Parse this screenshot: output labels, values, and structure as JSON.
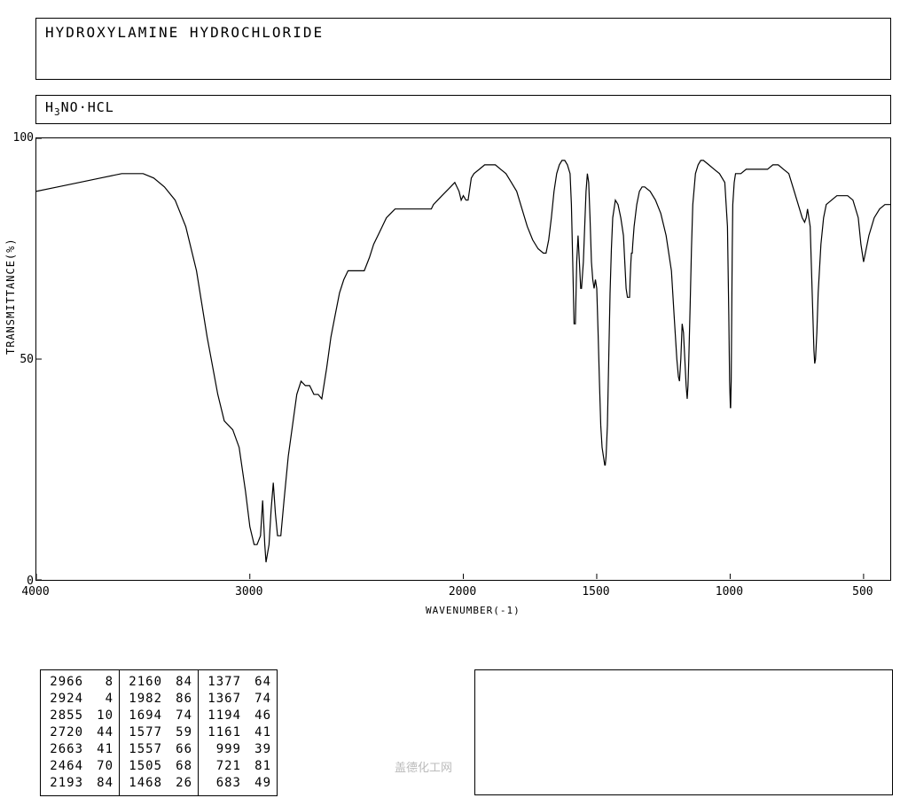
{
  "header": {
    "title": "HYDROXYLAMINE HYDROCHLORIDE",
    "formula_pre": "H",
    "formula_sub": "3",
    "formula_post": "NO·HCL"
  },
  "chart": {
    "type": "line",
    "ylabel": "TRANSMITTANCE(%)",
    "xlabel": "WAVENUMBER(-1)",
    "xlim": [
      4000,
      400
    ],
    "ylim": [
      0,
      100
    ],
    "yticks": [
      0,
      50,
      100
    ],
    "xticks": [
      4000,
      3000,
      2000,
      1500,
      1000,
      500
    ],
    "line_color": "#000000",
    "line_width": 1.2,
    "background_color": "#ffffff",
    "data": [
      [
        4000,
        88
      ],
      [
        3900,
        89
      ],
      [
        3800,
        90
      ],
      [
        3700,
        91
      ],
      [
        3600,
        92
      ],
      [
        3500,
        92
      ],
      [
        3450,
        91
      ],
      [
        3400,
        89
      ],
      [
        3350,
        86
      ],
      [
        3300,
        80
      ],
      [
        3250,
        70
      ],
      [
        3200,
        55
      ],
      [
        3150,
        42
      ],
      [
        3120,
        36
      ],
      [
        3100,
        35
      ],
      [
        3080,
        34
      ],
      [
        3050,
        30
      ],
      [
        3020,
        20
      ],
      [
        3000,
        12
      ],
      [
        2980,
        8
      ],
      [
        2966,
        8
      ],
      [
        2950,
        10
      ],
      [
        2940,
        18
      ],
      [
        2930,
        8
      ],
      [
        2924,
        4
      ],
      [
        2910,
        8
      ],
      [
        2900,
        16
      ],
      [
        2890,
        22
      ],
      [
        2880,
        15
      ],
      [
        2870,
        10
      ],
      [
        2855,
        10
      ],
      [
        2840,
        18
      ],
      [
        2820,
        28
      ],
      [
        2800,
        35
      ],
      [
        2780,
        42
      ],
      [
        2760,
        45
      ],
      [
        2740,
        44
      ],
      [
        2720,
        44
      ],
      [
        2700,
        42
      ],
      [
        2680,
        42
      ],
      [
        2663,
        41
      ],
      [
        2640,
        48
      ],
      [
        2620,
        55
      ],
      [
        2600,
        60
      ],
      [
        2580,
        65
      ],
      [
        2560,
        68
      ],
      [
        2540,
        70
      ],
      [
        2520,
        70
      ],
      [
        2500,
        70
      ],
      [
        2480,
        70
      ],
      [
        2464,
        70
      ],
      [
        2440,
        73
      ],
      [
        2420,
        76
      ],
      [
        2400,
        78
      ],
      [
        2380,
        80
      ],
      [
        2360,
        82
      ],
      [
        2340,
        83
      ],
      [
        2320,
        84
      ],
      [
        2300,
        84
      ],
      [
        2280,
        84
      ],
      [
        2260,
        84
      ],
      [
        2240,
        84
      ],
      [
        2220,
        84
      ],
      [
        2200,
        84
      ],
      [
        2193,
        84
      ],
      [
        2180,
        84
      ],
      [
        2170,
        84
      ],
      [
        2160,
        84
      ],
      [
        2150,
        84
      ],
      [
        2140,
        85
      ],
      [
        2120,
        86
      ],
      [
        2100,
        87
      ],
      [
        2080,
        88
      ],
      [
        2060,
        89
      ],
      [
        2040,
        90
      ],
      [
        2020,
        88
      ],
      [
        2010,
        86
      ],
      [
        2000,
        87
      ],
      [
        1990,
        86
      ],
      [
        1982,
        86
      ],
      [
        1970,
        91
      ],
      [
        1960,
        92
      ],
      [
        1940,
        93
      ],
      [
        1920,
        94
      ],
      [
        1900,
        94
      ],
      [
        1880,
        94
      ],
      [
        1860,
        93
      ],
      [
        1840,
        92
      ],
      [
        1820,
        90
      ],
      [
        1800,
        88
      ],
      [
        1780,
        84
      ],
      [
        1760,
        80
      ],
      [
        1740,
        77
      ],
      [
        1720,
        75
      ],
      [
        1700,
        74
      ],
      [
        1694,
        74
      ],
      [
        1690,
        74
      ],
      [
        1680,
        77
      ],
      [
        1670,
        82
      ],
      [
        1660,
        88
      ],
      [
        1650,
        92
      ],
      [
        1640,
        94
      ],
      [
        1630,
        95
      ],
      [
        1620,
        95
      ],
      [
        1610,
        94
      ],
      [
        1600,
        92
      ],
      [
        1595,
        85
      ],
      [
        1590,
        72
      ],
      [
        1585,
        58
      ],
      [
        1580,
        58
      ],
      [
        1575,
        72
      ],
      [
        1570,
        78
      ],
      [
        1565,
        72
      ],
      [
        1560,
        66
      ],
      [
        1557,
        66
      ],
      [
        1550,
        72
      ],
      [
        1545,
        80
      ],
      [
        1540,
        88
      ],
      [
        1535,
        92
      ],
      [
        1530,
        90
      ],
      [
        1525,
        82
      ],
      [
        1520,
        72
      ],
      [
        1515,
        68
      ],
      [
        1510,
        66
      ],
      [
        1505,
        68
      ],
      [
        1500,
        66
      ],
      [
        1495,
        56
      ],
      [
        1490,
        45
      ],
      [
        1485,
        35
      ],
      [
        1480,
        30
      ],
      [
        1475,
        28
      ],
      [
        1470,
        26
      ],
      [
        1468,
        26
      ],
      [
        1465,
        28
      ],
      [
        1460,
        35
      ],
      [
        1455,
        50
      ],
      [
        1450,
        65
      ],
      [
        1445,
        75
      ],
      [
        1440,
        82
      ],
      [
        1430,
        86
      ],
      [
        1420,
        85
      ],
      [
        1410,
        82
      ],
      [
        1400,
        78
      ],
      [
        1395,
        72
      ],
      [
        1390,
        66
      ],
      [
        1385,
        64
      ],
      [
        1380,
        64
      ],
      [
        1377,
        64
      ],
      [
        1375,
        68
      ],
      [
        1372,
        72
      ],
      [
        1370,
        74
      ],
      [
        1367,
        74
      ],
      [
        1365,
        76
      ],
      [
        1360,
        80
      ],
      [
        1350,
        85
      ],
      [
        1340,
        88
      ],
      [
        1330,
        89
      ],
      [
        1320,
        89
      ],
      [
        1300,
        88
      ],
      [
        1280,
        86
      ],
      [
        1260,
        83
      ],
      [
        1240,
        78
      ],
      [
        1220,
        70
      ],
      [
        1210,
        60
      ],
      [
        1200,
        50
      ],
      [
        1194,
        46
      ],
      [
        1190,
        45
      ],
      [
        1185,
        50
      ],
      [
        1180,
        58
      ],
      [
        1175,
        56
      ],
      [
        1170,
        50
      ],
      [
        1165,
        44
      ],
      [
        1161,
        41
      ],
      [
        1158,
        44
      ],
      [
        1155,
        50
      ],
      [
        1150,
        62
      ],
      [
        1145,
        75
      ],
      [
        1140,
        85
      ],
      [
        1130,
        92
      ],
      [
        1120,
        94
      ],
      [
        1110,
        95
      ],
      [
        1100,
        95
      ],
      [
        1080,
        94
      ],
      [
        1060,
        93
      ],
      [
        1040,
        92
      ],
      [
        1020,
        90
      ],
      [
        1010,
        80
      ],
      [
        1005,
        60
      ],
      [
        1002,
        45
      ],
      [
        999,
        39
      ],
      [
        998,
        39
      ],
      [
        996,
        45
      ],
      [
        994,
        60
      ],
      [
        992,
        75
      ],
      [
        990,
        85
      ],
      [
        985,
        90
      ],
      [
        980,
        92
      ],
      [
        960,
        92
      ],
      [
        940,
        93
      ],
      [
        920,
        93
      ],
      [
        900,
        93
      ],
      [
        880,
        93
      ],
      [
        860,
        93
      ],
      [
        840,
        94
      ],
      [
        820,
        94
      ],
      [
        800,
        93
      ],
      [
        780,
        92
      ],
      [
        760,
        88
      ],
      [
        740,
        84
      ],
      [
        730,
        82
      ],
      [
        721,
        81
      ],
      [
        715,
        82
      ],
      [
        710,
        84
      ],
      [
        700,
        80
      ],
      [
        695,
        70
      ],
      [
        690,
        60
      ],
      [
        686,
        52
      ],
      [
        683,
        49
      ],
      [
        680,
        50
      ],
      [
        675,
        56
      ],
      [
        670,
        65
      ],
      [
        660,
        76
      ],
      [
        650,
        82
      ],
      [
        640,
        85
      ],
      [
        620,
        86
      ],
      [
        600,
        87
      ],
      [
        580,
        87
      ],
      [
        560,
        87
      ],
      [
        540,
        86
      ],
      [
        520,
        82
      ],
      [
        510,
        76
      ],
      [
        500,
        72
      ],
      [
        480,
        78
      ],
      [
        460,
        82
      ],
      [
        440,
        84
      ],
      [
        420,
        85
      ],
      [
        400,
        85
      ]
    ]
  },
  "peak_table": {
    "columns": [
      [
        [
          "2966",
          "8"
        ],
        [
          "2924",
          "4"
        ],
        [
          "2855",
          "10"
        ],
        [
          "2720",
          "44"
        ],
        [
          "2663",
          "41"
        ],
        [
          "2464",
          "70"
        ],
        [
          "2193",
          "84"
        ]
      ],
      [
        [
          "2160",
          "84"
        ],
        [
          "1982",
          "86"
        ],
        [
          "1694",
          "74"
        ],
        [
          "1577",
          "59"
        ],
        [
          "1557",
          "66"
        ],
        [
          "1505",
          "68"
        ],
        [
          "1468",
          "26"
        ]
      ],
      [
        [
          "1377",
          "64"
        ],
        [
          "1367",
          "74"
        ],
        [
          "1194",
          "46"
        ],
        [
          "1161",
          "41"
        ],
        [
          "999",
          "39"
        ],
        [
          "721",
          "81"
        ],
        [
          "683",
          "49"
        ]
      ]
    ]
  },
  "watermark": "盖德化工网"
}
